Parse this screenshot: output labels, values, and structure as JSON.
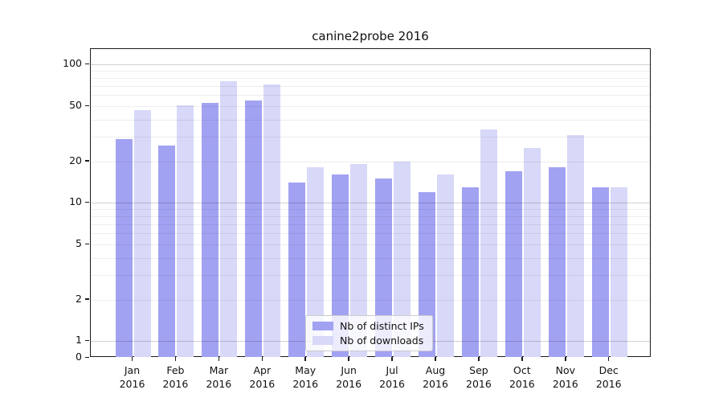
{
  "chart_data": {
    "type": "bar",
    "title": "canine2probe 2016",
    "yscale": "symlog",
    "ylim": [
      0,
      130
    ],
    "yticks": [
      100,
      50,
      20,
      10,
      5,
      2,
      1,
      0
    ],
    "grid": "on",
    "legend_position": "lower-center",
    "categories": [
      "Jan",
      "Feb",
      "Mar",
      "Apr",
      "May",
      "Jun",
      "Jul",
      "Aug",
      "Sep",
      "Oct",
      "Nov",
      "Dec"
    ],
    "x_year_label": "2016",
    "series": [
      {
        "name": "Nb of distinct IPs",
        "color": "#a2a2f2",
        "values": [
          29,
          26,
          53,
          55,
          14,
          16,
          15,
          12,
          13,
          17,
          18,
          13
        ]
      },
      {
        "name": "Nb of downloads",
        "color": "#d8d8f8",
        "values": [
          47,
          51,
          76,
          72,
          18,
          19,
          20,
          16,
          34,
          25,
          31,
          13
        ]
      }
    ]
  }
}
